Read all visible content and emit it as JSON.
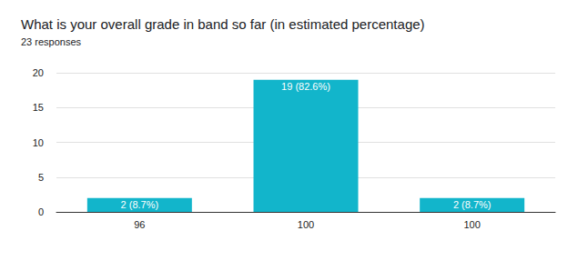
{
  "chart_data": {
    "type": "bar",
    "title": "What is your overall grade in band so far (in estimated percentage)",
    "subtitle": "23 responses",
    "categories": [
      "96",
      "100",
      "100"
    ],
    "values": [
      2,
      19,
      2
    ],
    "value_labels": [
      "2 (8.7%)",
      "19 (82.6%)",
      "2 (8.7%)"
    ],
    "data_labels": true,
    "color": "#12b5cb",
    "ylim": [
      0,
      20
    ],
    "yticks": [
      0,
      5,
      10,
      15,
      20
    ],
    "grid": true
  }
}
